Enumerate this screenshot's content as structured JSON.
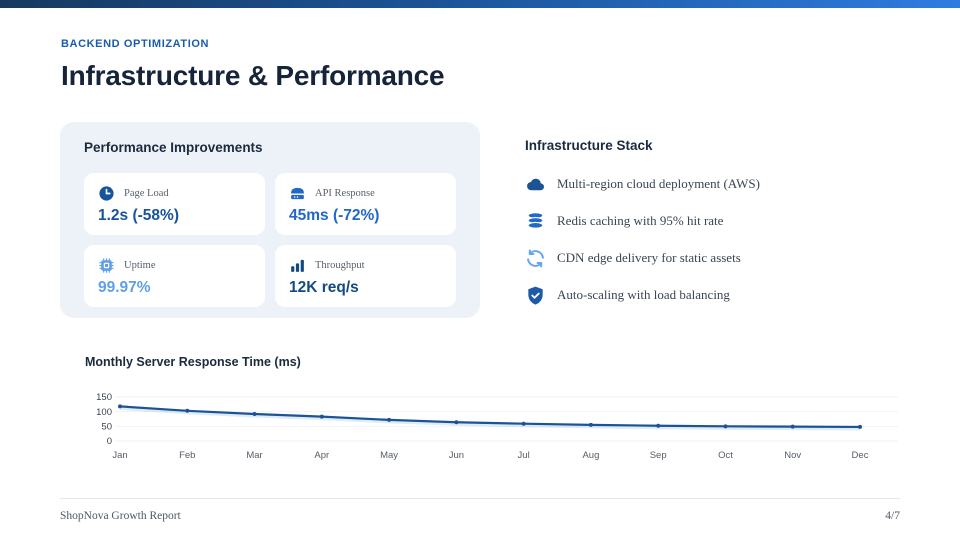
{
  "slide": {
    "kicker": "BACKEND OPTIMIZATION",
    "title": "Infrastructure & Performance",
    "footer": {
      "left": "ShopNova Growth Report",
      "right": "4/7"
    },
    "colors": {
      "top_bar_gradient_start": "#16395f",
      "top_bar_gradient_end": "#2f7ce0",
      "kicker": "#1a5cab",
      "heading": "#16243a",
      "panel_bg": "#edf2f8"
    }
  },
  "performance": {
    "heading": "Performance Improvements",
    "metrics": [
      {
        "icon": "clock-icon",
        "label": "Page Load",
        "value": "1.2s (-58%)",
        "color": "#17549c"
      },
      {
        "icon": "server-icon",
        "label": "API Response",
        "value": "45ms (-72%)",
        "color": "#2268c8"
      },
      {
        "icon": "cpu-icon",
        "label": "Uptime",
        "value": "99.97%",
        "color": "#5fa0e8"
      },
      {
        "icon": "bar-chart-icon",
        "label": "Throughput",
        "value": "12K req/s",
        "color": "#154a80"
      }
    ]
  },
  "infrastructure": {
    "heading": "Infrastructure Stack",
    "items": [
      {
        "icon": "cloud-icon",
        "text": "Multi-region cloud deployment (AWS)",
        "icon_color": "#1b5393"
      },
      {
        "icon": "database-icon",
        "text": "Redis caching with 95% hit rate",
        "icon_color": "#2268c8"
      },
      {
        "icon": "refresh-icon",
        "text": "CDN edge delivery for static assets",
        "icon_color": "#64a5ec"
      },
      {
        "icon": "shield-check-icon",
        "text": "Auto-scaling with load balancing",
        "icon_color": "#1c5aa8"
      }
    ]
  },
  "chart_data": {
    "type": "line",
    "title": "Monthly Server Response Time (ms)",
    "categories": [
      "Jan",
      "Feb",
      "Mar",
      "Apr",
      "May",
      "Jun",
      "Jul",
      "Aug",
      "Sep",
      "Oct",
      "Nov",
      "Dec"
    ],
    "values": [
      118,
      103,
      92,
      83,
      72,
      64,
      59,
      55,
      52,
      50,
      49,
      48
    ],
    "xlabel": "",
    "ylabel": "",
    "ylim": [
      0,
      150
    ],
    "yticks": [
      0,
      50,
      100,
      150
    ],
    "line_color": "#1b5393",
    "grid": true,
    "legend": "none"
  }
}
